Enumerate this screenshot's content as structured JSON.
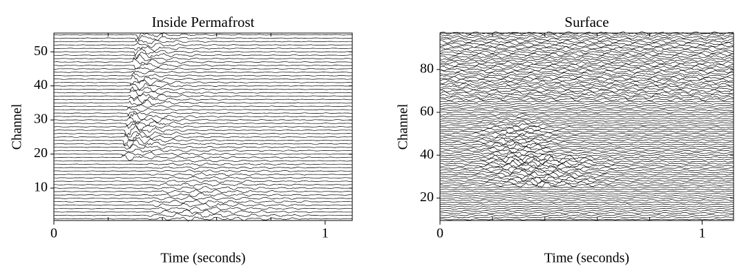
{
  "chart_data": [
    {
      "type": "wiggle",
      "title": "Inside Permafrost",
      "xlabel": "Time (seconds)",
      "ylabel": "Channel",
      "xlim": [
        0,
        1.1
      ],
      "xticks": [
        0,
        1
      ],
      "minor_xticks": [
        0.2,
        0.4,
        0.6,
        0.8
      ],
      "ylim": [
        0.5,
        55.5
      ],
      "yticks": [
        10,
        20,
        30,
        40,
        50
      ],
      "color": "#000000"
    },
    {
      "type": "wiggle",
      "title": "Surface",
      "xlabel": "Time (seconds)",
      "ylabel": "Channel",
      "xlim": [
        0,
        1.12
      ],
      "xticks": [
        0,
        1
      ],
      "minor_xticks": [
        0.2,
        0.4,
        0.6,
        0.8
      ],
      "ylim": [
        9.5,
        97
      ],
      "yticks": [
        20,
        40,
        60,
        80
      ],
      "color": "#000000"
    }
  ]
}
